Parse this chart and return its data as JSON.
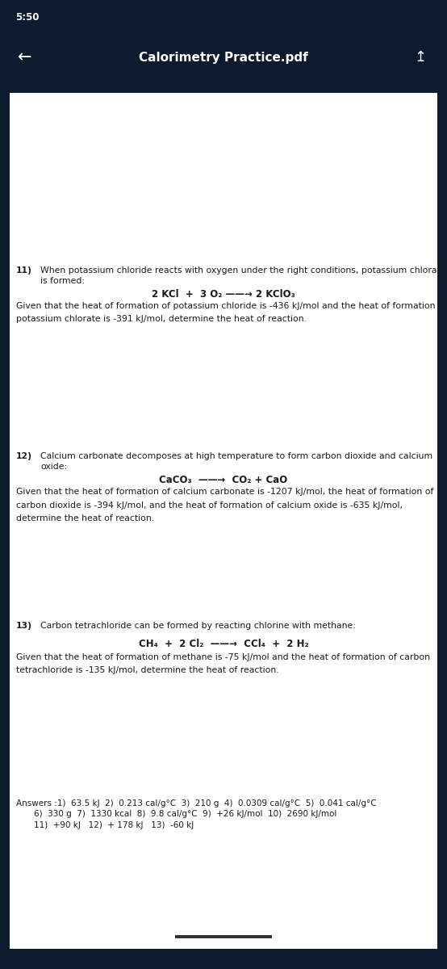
{
  "title": "Calorimetry Practice.pdf",
  "status_time": "5:50",
  "nav_bar_color": "#0d1b2e",
  "page_bg_color": "#e8e8ee",
  "text_color": "#1a1a1a",
  "nav_text_color": "#ffffff",
  "problem11_num": "11)",
  "problem11_line1": "When potassium chloride reacts with oxygen under the right conditions, potassium chlorate",
  "problem11_line2": "is formed:",
  "problem11_equation": "2 KCl  +  3 O₂ ——→ 2 KClO₃",
  "problem11_given1": "Given that the heat of formation of potassium chloride is -436 kJ/mol and the heat of formation of",
  "problem11_given2": "potassium chlorate is -391 kJ/mol, determine the heat of reaction.",
  "problem12_num": "12)",
  "problem12_line1": "Calcium carbonate decomposes at high temperature to form carbon dioxide and calcium",
  "problem12_line2": "oxide:",
  "problem12_equation": "CaCO₃  ——→  CO₂ + CaO",
  "problem12_given1": "Given that the heat of formation of calcium carbonate is -1207 kJ/mol, the heat of formation of",
  "problem12_given2": "carbon dioxide is -394 kJ/mol, and the heat of formation of calcium oxide is -635 kJ/mol,",
  "problem12_given3": "determine the heat of reaction.",
  "problem13_num": "13)",
  "problem13_line1": "Carbon tetrachloride can be formed by reacting chlorine with methane:",
  "problem13_equation": "CH₄  +  2 Cl₂  ——→  CCl₄  +  2 H₂",
  "problem13_given1": "Given that the heat of formation of methane is -75 kJ/mol and the heat of formation of carbon",
  "problem13_given2": "tetrachloride is -135 kJ/mol, determine the heat of reaction.",
  "answers_line1": "Answers :1)  63.5 kJ  2)  0.213 cal/g°C  3)  210 g  4)  0.0309 cal/g°C  5)  0.041 cal/g°C",
  "answers_line2": "6)  330 g  7)  1330 kcal  8)  9.8 cal/g°C  9)  +26 kJ/mol  10)  2690 kJ/mol",
  "answers_line3": "11)  +90 kJ   12)  + 178 kJ   13)  -60 kJ",
  "bottom_bar_color": "#333333"
}
